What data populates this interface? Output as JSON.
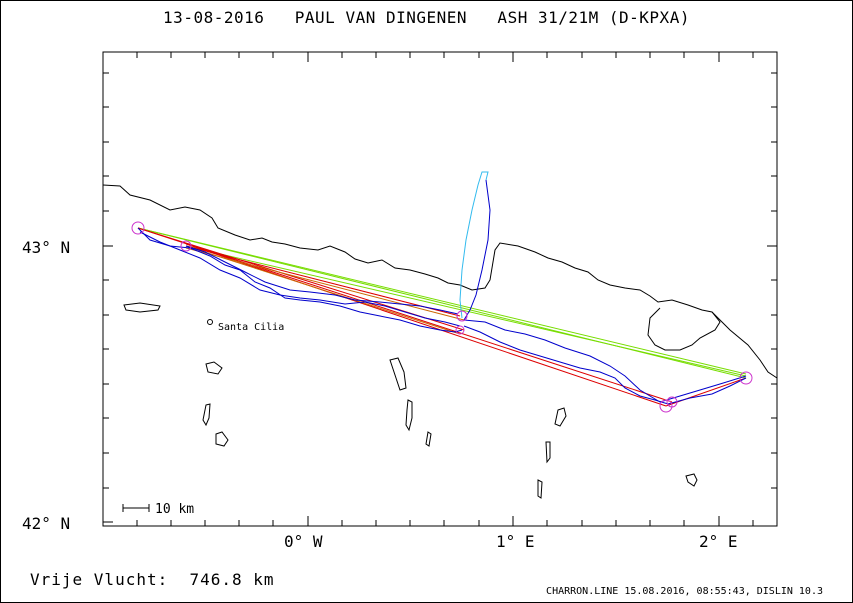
{
  "title": "13-08-2016   PAUL VAN DINGENEN   ASH 31/21M (D-KPXA)",
  "map": {
    "lat_labels": [
      "43° N",
      "42° N"
    ],
    "lon_labels": [
      "0° W",
      "1° E",
      "2° E"
    ],
    "place_label": "Santa Cilia",
    "scale_label": "10 km",
    "colors": {
      "coast": "#000000",
      "track": "#0000cc",
      "track_alt": "#33bbee",
      "task_red": "#dd0000",
      "task_orange": "#cc6600",
      "task_green": "#77dd00",
      "turnpoint": "#cc33cc"
    }
  },
  "footer": {
    "free_flight": "Vrije Vlucht:  746.8 km",
    "credit": "CHARRON.LINE 15.08.2016, 08:55:43, DISLIN 10.3"
  }
}
